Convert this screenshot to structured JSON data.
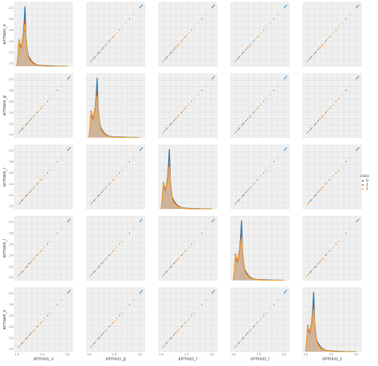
{
  "chart_data": {
    "type": "scatter",
    "kind": "pairplot",
    "variables": [
      "airmass_u",
      "airmass_g",
      "airmass_r",
      "airmass_i",
      "airmass_z"
    ],
    "diagonal": "kde",
    "offdiagonal": "scatter",
    "axis_range": [
      0.95,
      2.1
    ],
    "ticks": [
      1.0,
      1.2,
      1.4,
      1.6,
      1.8,
      2.0
    ],
    "tick_labels": [
      "1.0",
      "1.2",
      "1.4",
      "1.6",
      "1.8",
      "2.0"
    ],
    "x_ticks": [
      1.0,
      1.5,
      2.0
    ],
    "x_tick_labels": [
      "1.0",
      "1.5",
      "2.0"
    ],
    "grid": true,
    "legend": {
      "title": "class",
      "placement": "right",
      "entries": [
        "0",
        "1",
        "2"
      ]
    },
    "series": [
      {
        "name": "0",
        "color": "#1f77b4"
      },
      {
        "name": "1",
        "color": "#d9541e"
      },
      {
        "name": "2",
        "color": "#f2a93b"
      }
    ],
    "kde": {
      "x": [
        1.0,
        1.02,
        1.04,
        1.06,
        1.08,
        1.1,
        1.12,
        1.14,
        1.16,
        1.18,
        1.2,
        1.22,
        1.25,
        1.3,
        1.35,
        1.4,
        1.5,
        1.6,
        1.8,
        2.0
      ],
      "density": [
        [
          0.02,
          0.5,
          1.3,
          1.1,
          0.95,
          1.2,
          1.5,
          2.0,
          2.9,
          1.4,
          0.9,
          0.55,
          0.4,
          0.22,
          0.12,
          0.06,
          0.03,
          0.02,
          0.01,
          0.005
        ],
        [
          0.02,
          0.45,
          1.15,
          1.0,
          0.9,
          1.1,
          1.35,
          1.7,
          2.3,
          1.2,
          0.85,
          0.5,
          0.35,
          0.2,
          0.1,
          0.05,
          0.02,
          0.01,
          0.0,
          0.0
        ],
        [
          0.02,
          0.5,
          1.25,
          1.1,
          1.0,
          1.2,
          1.45,
          1.8,
          2.05,
          1.25,
          0.8,
          0.45,
          0.3,
          0.15,
          0.08,
          0.04,
          0.01,
          0.0,
          0.0,
          0.0
        ]
      ]
    },
    "scatter_points": [
      [
        1.02,
        1.02,
        2
      ],
      [
        1.05,
        1.05,
        1
      ],
      [
        1.08,
        1.08,
        2
      ],
      [
        1.1,
        1.1,
        0
      ],
      [
        1.12,
        1.12,
        1
      ],
      [
        1.15,
        1.15,
        2
      ],
      [
        1.18,
        1.18,
        0
      ],
      [
        1.2,
        1.2,
        1
      ],
      [
        1.22,
        1.22,
        2
      ],
      [
        1.25,
        1.25,
        0
      ],
      [
        1.28,
        1.28,
        1
      ],
      [
        1.3,
        1.3,
        2
      ],
      [
        1.33,
        1.33,
        1
      ],
      [
        1.36,
        1.36,
        2
      ],
      [
        1.4,
        1.4,
        0
      ],
      [
        1.43,
        1.43,
        2
      ],
      [
        1.47,
        1.47,
        1
      ],
      [
        1.5,
        1.5,
        2
      ],
      [
        1.55,
        1.55,
        2
      ],
      [
        1.6,
        1.6,
        1
      ],
      [
        1.65,
        1.65,
        2
      ],
      [
        1.72,
        1.72,
        2
      ],
      [
        1.8,
        1.8,
        1
      ],
      [
        1.88,
        1.88,
        2
      ],
      [
        2.01,
        2.01,
        0
      ],
      [
        2.03,
        2.03,
        0
      ],
      [
        2.05,
        2.05,
        0
      ]
    ]
  }
}
